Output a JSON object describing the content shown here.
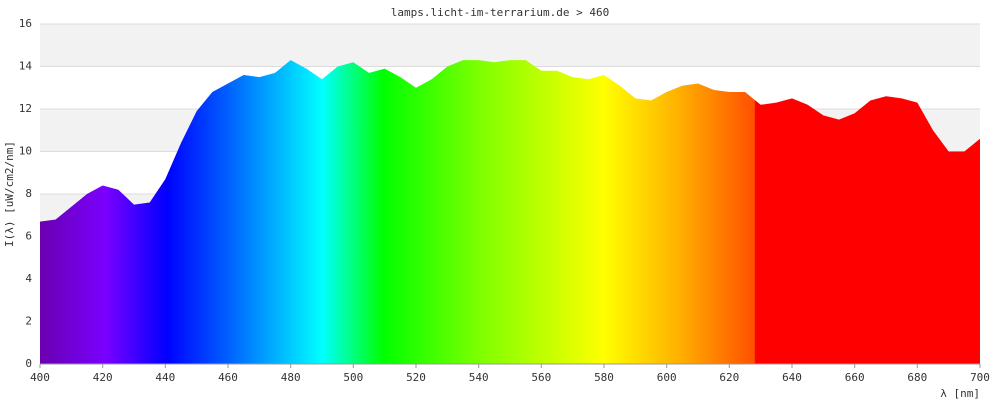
{
  "chart_data": {
    "type": "area",
    "title": "lamps.licht-im-terrarium.de > 460",
    "x_label": "λ [nm]",
    "y_label": "I(λ) [uW/cm2/nm]",
    "x": [
      400,
      405,
      410,
      415,
      420,
      425,
      430,
      435,
      440,
      445,
      450,
      455,
      460,
      465,
      470,
      475,
      480,
      485,
      490,
      495,
      500,
      505,
      510,
      515,
      520,
      525,
      530,
      535,
      540,
      545,
      550,
      555,
      560,
      565,
      570,
      575,
      580,
      585,
      590,
      595,
      600,
      605,
      610,
      615,
      620,
      625,
      630,
      635,
      640,
      645,
      650,
      655,
      660,
      665,
      670,
      675,
      680,
      685,
      690,
      695,
      700
    ],
    "values": [
      6.7,
      6.8,
      7.4,
      8.0,
      8.4,
      8.2,
      7.5,
      7.6,
      8.7,
      10.4,
      11.9,
      12.8,
      13.2,
      13.6,
      13.5,
      13.7,
      14.3,
      13.9,
      13.4,
      14.0,
      14.2,
      13.7,
      13.9,
      13.5,
      13.0,
      13.4,
      14.0,
      14.3,
      14.3,
      14.2,
      14.3,
      14.3,
      13.8,
      13.8,
      13.5,
      13.4,
      13.6,
      13.1,
      12.5,
      12.4,
      12.8,
      13.1,
      13.2,
      12.9,
      12.8,
      12.8,
      12.2,
      12.3,
      12.5,
      12.2,
      11.7,
      11.5,
      11.8,
      12.4,
      12.6,
      12.5,
      12.3,
      11.0,
      10.0,
      10.0,
      10.6
    ],
    "xlim": [
      400,
      700
    ],
    "ylim": [
      0,
      16
    ],
    "xticks": [
      400,
      420,
      440,
      460,
      480,
      500,
      520,
      540,
      560,
      580,
      600,
      620,
      640,
      660,
      680,
      700
    ],
    "yticks": [
      0,
      2,
      4,
      6,
      8,
      10,
      12,
      14,
      16
    ],
    "grid": true
  }
}
